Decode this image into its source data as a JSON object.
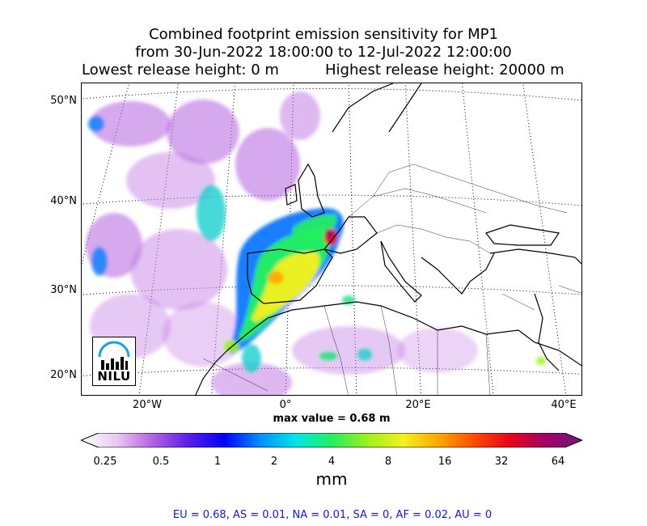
{
  "title": {
    "line1": "Combined footprint emission sensitivity for MP1",
    "line2": "from 30-Jun-2022 18:00:00 to 12-Jul-2022 12:00:00",
    "lowest": "Lowest release height: 0 m",
    "highest": "Highest release height: 20000 m"
  },
  "map": {
    "lat_labels": [
      "50°N",
      "40°N",
      "30°N",
      "20°N"
    ],
    "lon_labels": [
      "20°W",
      "0°",
      "20°E",
      "40°E"
    ],
    "max_value_label": "max value = 0.68 m",
    "logo_text": "NILU"
  },
  "colorbar": {
    "ticks": [
      "0.25",
      "0.5",
      "1",
      "2",
      "4",
      "8",
      "16",
      "32",
      "64"
    ],
    "unit": "mm",
    "colors": [
      "#ffffff",
      "#e9c8f2",
      "#b561e0",
      "#5a1fe8",
      "#0000ff",
      "#0090ff",
      "#00e6e6",
      "#22f060",
      "#9ef01a",
      "#f5f020",
      "#ffa500",
      "#ff4a00",
      "#e8001e",
      "#a0006a",
      "#6e1a7a"
    ]
  },
  "fractions": "EU = 0.68,  AS = 0.01,  NA = 0.01,  SA = 0,  AF = 0.02,  AU = 0"
}
